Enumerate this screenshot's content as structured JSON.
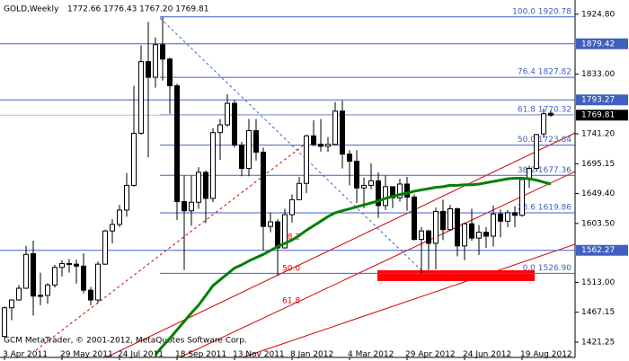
{
  "chart_data": {
    "type": "candlestick",
    "title": "GOLD,Weekly",
    "subtitle": "1772.66 1776.43 1767.20 1769.81",
    "footer": "GCM MetaTrader, © 2001-2012, MetaQuotes Software Corp.",
    "categories": [
      "3 Apr 2011",
      null,
      null,
      null,
      null,
      null,
      null,
      null,
      "29 May 2011",
      null,
      null,
      null,
      null,
      null,
      null,
      null,
      "24 Jul 2011",
      null,
      null,
      null,
      null,
      null,
      null,
      null,
      "18 Sep 2011",
      null,
      null,
      null,
      null,
      null,
      null,
      null,
      "13 Nov 2011",
      null,
      null,
      null,
      null,
      null,
      null,
      null,
      "8 Jan 2012",
      null,
      null,
      null,
      null,
      null,
      null,
      null,
      "4 Mar 2012",
      null,
      null,
      null,
      null,
      null,
      null,
      null,
      "29 Apr 2012",
      null,
      null,
      null,
      null,
      null,
      null,
      null,
      "24 Jun 2012",
      null,
      null,
      null,
      null,
      null,
      null,
      null,
      "19 Aug 2012",
      null,
      null,
      null,
      null
    ],
    "ohlc": {
      "open": [
        1430,
        1474,
        1486,
        1504,
        1557,
        1492,
        1493,
        1509,
        1536,
        1542,
        1541,
        1538,
        1501,
        1486,
        1541,
        1592,
        1602,
        1624,
        1662,
        1742,
        1852,
        1828,
        1878,
        1856,
        1815,
        1637,
        1623,
        1636,
        1682,
        1642,
        1743,
        1755,
        1788,
        1724,
        1688,
        1746,
        1713,
        1599,
        1606,
        1566,
        1617,
        1640,
        1665,
        1738,
        1725,
        1722,
        1725,
        1776,
        1710,
        1699,
        1658,
        1662,
        1669,
        1631,
        1660,
        1643,
        1664,
        1644,
        1579,
        1592,
        1573,
        1622,
        1594,
        1626,
        1569,
        1603,
        1581,
        1590,
        1584,
        1618,
        1607,
        1620,
        1616,
        1671,
        1688,
        1741,
        1772.66
      ],
      "high": [
        1476,
        1487,
        1509,
        1569,
        1577,
        1528,
        1512,
        1540,
        1547,
        1549,
        1548,
        1558,
        1506,
        1545,
        1594,
        1610,
        1632,
        1681,
        1815,
        1877,
        1913,
        1889,
        1921,
        1858,
        1818,
        1677,
        1677,
        1690,
        1685,
        1750,
        1764,
        1802,
        1793,
        1729,
        1764,
        1764,
        1720,
        1620,
        1610,
        1626,
        1648,
        1675,
        1740,
        1762,
        1764,
        1736,
        1790,
        1792,
        1716,
        1716,
        1674,
        1696,
        1682,
        1677,
        1660,
        1672,
        1675,
        1648,
        1598,
        1594,
        1628,
        1640,
        1632,
        1628,
        1605,
        1626,
        1601,
        1598,
        1631,
        1625,
        1624,
        1630,
        1675,
        1692,
        1741,
        1780,
        1776.43
      ],
      "low": [
        1428,
        1455,
        1485,
        1503,
        1462,
        1478,
        1480,
        1505,
        1522,
        1528,
        1511,
        1496,
        1478,
        1481,
        1540,
        1573,
        1598,
        1614,
        1660,
        1740,
        1705,
        1812,
        1823,
        1772,
        1609,
        1532,
        1600,
        1626,
        1604,
        1636,
        1701,
        1752,
        1720,
        1676,
        1676,
        1700,
        1562,
        1590,
        1523,
        1565,
        1605,
        1640,
        1650,
        1722,
        1714,
        1713,
        1725,
        1688,
        1662,
        1635,
        1627,
        1656,
        1612,
        1624,
        1627,
        1637,
        1623,
        1577,
        1527,
        1532,
        1533,
        1578,
        1592,
        1553,
        1547,
        1577,
        1555,
        1566,
        1568,
        1582,
        1598,
        1598,
        1614,
        1658,
        1683,
        1735,
        1767.2
      ],
      "close": [
        1474,
        1486,
        1504,
        1556,
        1492,
        1493,
        1509,
        1536,
        1542,
        1541,
        1538,
        1501,
        1486,
        1541,
        1592,
        1602,
        1624,
        1662,
        1742,
        1852,
        1828,
        1878,
        1856,
        1815,
        1637,
        1623,
        1636,
        1682,
        1642,
        1743,
        1755,
        1788,
        1724,
        1688,
        1746,
        1713,
        1599,
        1606,
        1566,
        1617,
        1640,
        1665,
        1738,
        1725,
        1722,
        1725,
        1776,
        1710,
        1699,
        1658,
        1662,
        1669,
        1631,
        1660,
        1643,
        1664,
        1644,
        1579,
        1592,
        1573,
        1622,
        1594,
        1626,
        1569,
        1603,
        1581,
        1590,
        1584,
        1618,
        1607,
        1620,
        1616,
        1671,
        1688,
        1740,
        1772,
        1769.81
      ]
    },
    "ma": {
      "color": "#008000",
      "values": [
        null,
        null,
        null,
        null,
        null,
        null,
        null,
        null,
        null,
        null,
        null,
        null,
        null,
        null,
        null,
        null,
        null,
        null,
        null,
        null,
        null,
        1402,
        1415,
        1427,
        1440,
        1453,
        1466,
        1478,
        1493,
        1508,
        1517,
        1526,
        1535,
        1540,
        1546,
        1551,
        1556,
        1562,
        1568,
        1573,
        1578,
        1585,
        1593,
        1600,
        1607,
        1614,
        1620,
        1623,
        1626,
        1629,
        1632,
        1635,
        1638,
        1642,
        1645,
        1648,
        1650,
        1653,
        1655,
        1657,
        1659,
        1660,
        1662,
        1662,
        1663,
        1663,
        1664,
        1666,
        1668,
        1670,
        1672,
        1673,
        1673,
        1672,
        1670,
        1667,
        1664
      ]
    },
    "ylim": [
      1397.8,
      1943.9
    ],
    "yticks": [
      {
        "value": 1924.8,
        "label": "1924.80"
      },
      {
        "value": 1833,
        "label": "1833.00"
      },
      {
        "value": 1741.2,
        "label": "1741.20"
      },
      1695.15,
      {
        "value": 1649.4,
        "label": "1649.40"
      },
      {
        "value": 1603.5,
        "label": "1603.50"
      },
      {
        "value": 1513,
        "label": "1513.00"
      },
      1467.15,
      1421.25
    ],
    "price_lines": [
      1879.42,
      1793.27,
      1562.27
    ],
    "last_price": 1769.81,
    "fib_levels": [
      {
        "value": 1920.78,
        "label": "100.0 1920.78"
      },
      {
        "value": 1827.82,
        "label": "76.4 1827.82"
      },
      {
        "value": 1770.32,
        "label": "61.8 1770.32"
      },
      {
        "value": 1723.84,
        "label": "50.0 1723.84"
      },
      {
        "value": 1677.36,
        "label": "38.2 1677.36"
      },
      {
        "value": 1619.86,
        "label": "23.6 1619.86"
      },
      {
        "value": 1526.9,
        "label": "0.0 1526.90"
      }
    ],
    "fib2_levels": [
      {
        "value": 1582.6,
        "label": "38.2"
      },
      {
        "value": 1534,
        "label": "50.0"
      },
      {
        "value": 1484.7,
        "label": "61.8"
      }
    ],
    "grid": false
  }
}
